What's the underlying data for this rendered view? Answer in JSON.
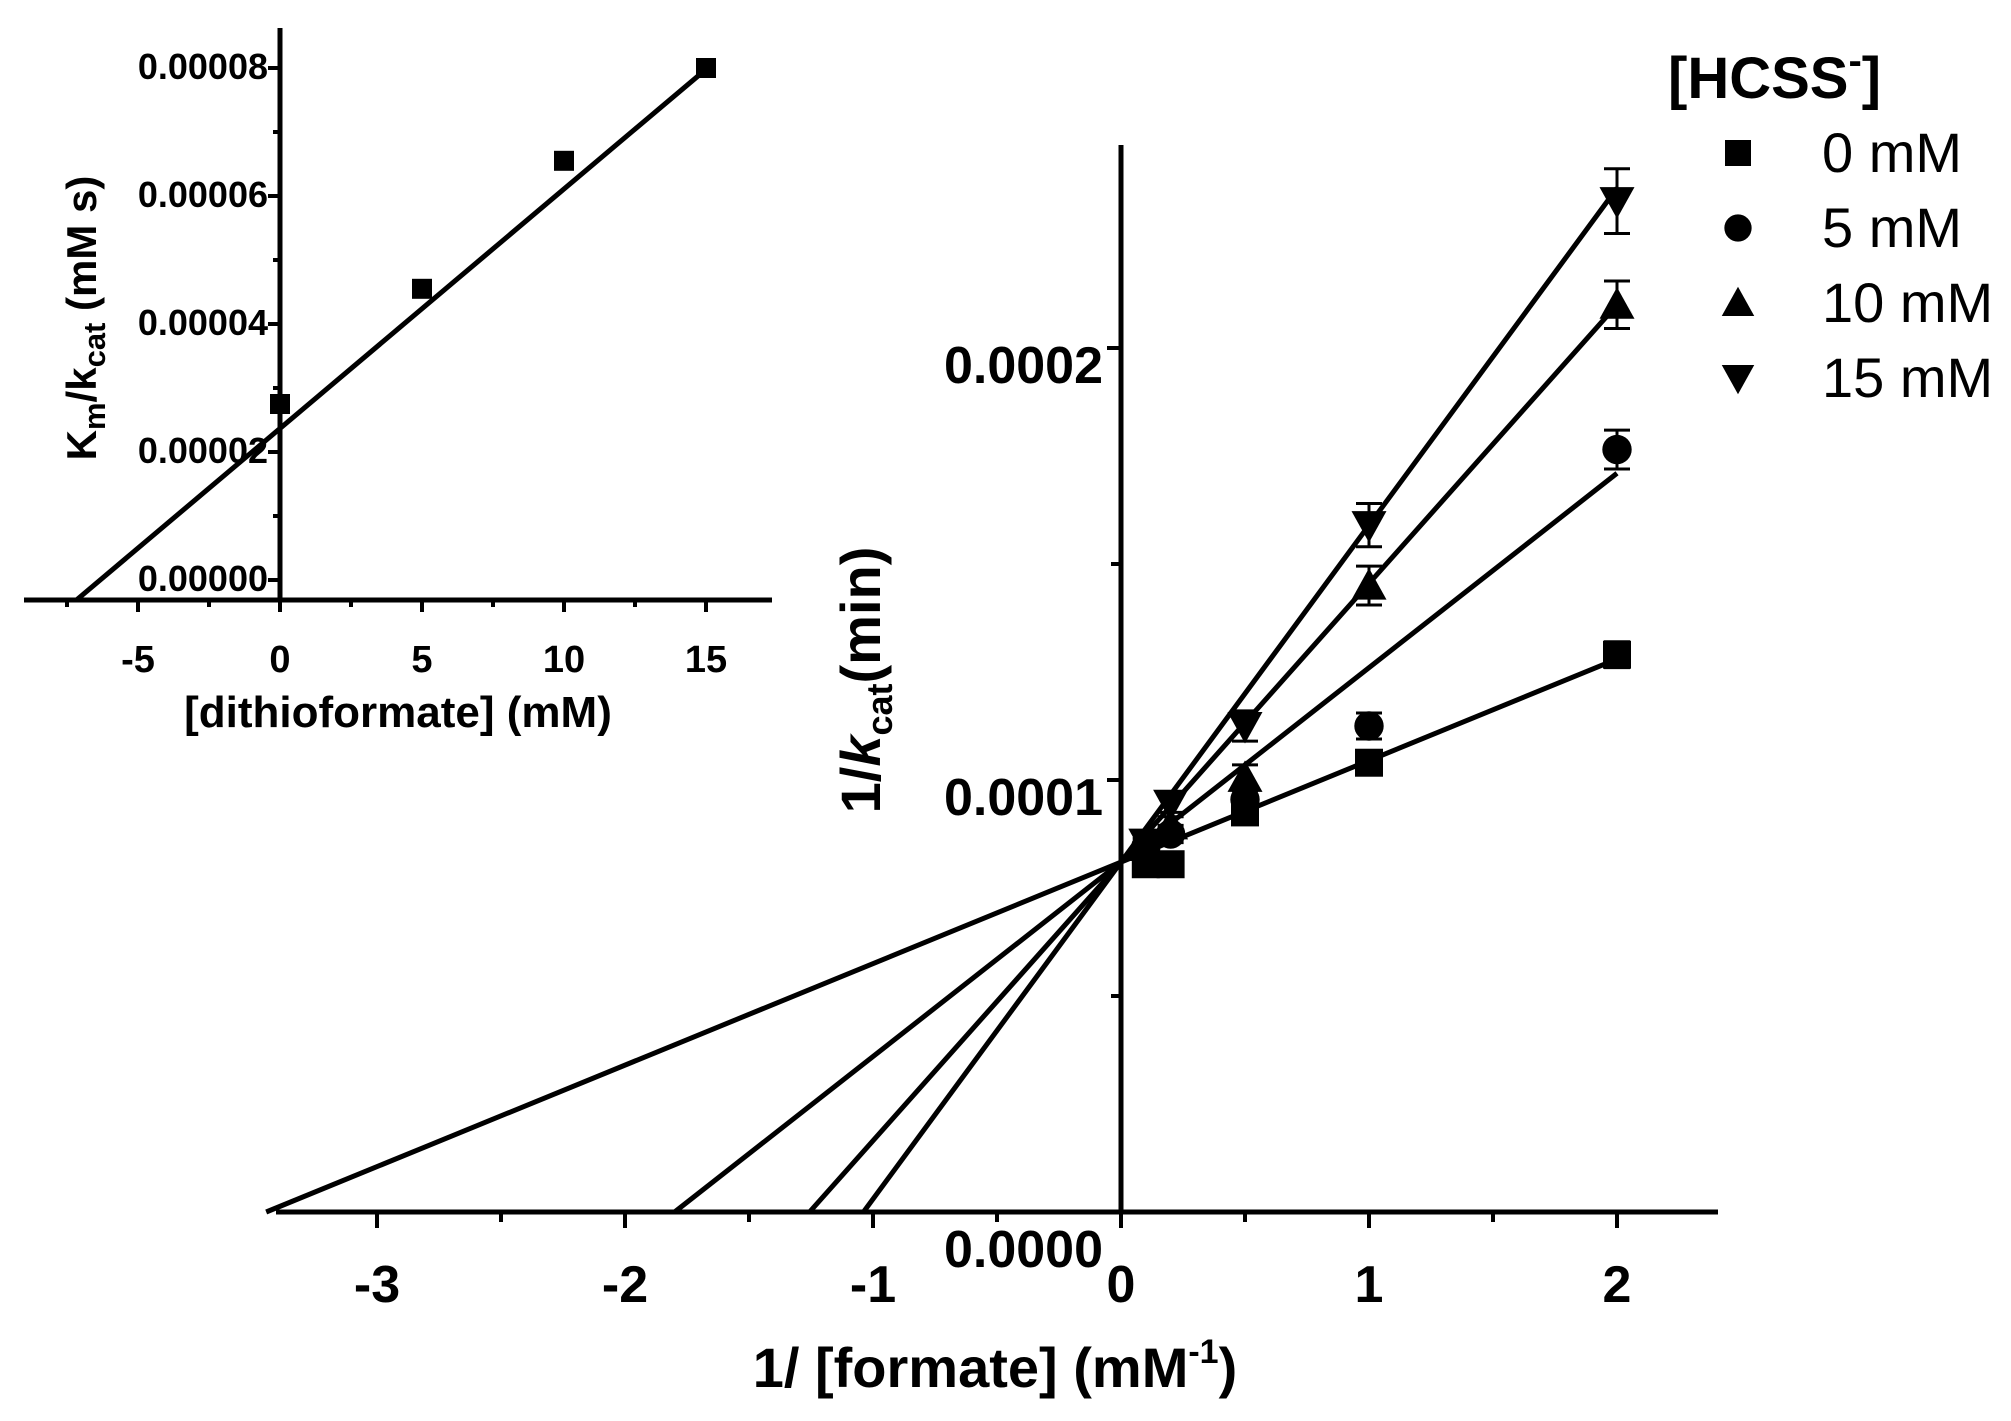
{
  "chart_data": [
    {
      "id": "main",
      "type": "scatter",
      "title": "",
      "xlabel": "1/ [formate] (mM",
      "xlabel_sup": "-1",
      "xlabel_end": ")",
      "ylabel": "1/",
      "ylabel_k": "k",
      "ylabel_sub": "cat",
      "ylabel_end": "(min)",
      "xlim": [
        -3.4,
        2.4
      ],
      "ylim": [
        0,
        0.00025
      ],
      "x_ticks": [
        -3,
        -2,
        -1,
        0,
        1,
        2
      ],
      "x_tick_labels": [
        "-3",
        "-2",
        "-1",
        "0",
        "1",
        "2"
      ],
      "y_ticks": [
        0,
        0.0001,
        0.0002
      ],
      "y_tick_labels": [
        "0.0000",
        "0.0001",
        "0.0002"
      ],
      "y_minor_ticks": [
        5e-05,
        0.00015
      ],
      "legend": {
        "title": "[HCSS",
        "title_sup": "-",
        "title_end": "]",
        "position": "top-right"
      },
      "series": [
        {
          "name": "0 mM",
          "marker": "square",
          "x": [
            0.1,
            0.2,
            0.5,
            1,
            2
          ],
          "y": [
            8.05e-05,
            8.05e-05,
            9.25e-05,
            0.000104,
            0.000129
          ],
          "err": [
            1.8e-06,
            1.8e-06,
            2e-06,
            2.5e-06,
            3e-06
          ],
          "fit": {
            "slope": 2.35e-05,
            "intercept": 8.1e-05
          }
        },
        {
          "name": "5 mM",
          "marker": "circle",
          "x": [
            0.1,
            0.2,
            0.5,
            1,
            2
          ],
          "y": [
            8.45e-05,
            8.75e-05,
            9.55e-05,
            0.0001125,
            0.0001765
          ],
          "err": [
            2e-06,
            2e-06,
            2.5e-06,
            3e-06,
            4.5e-06
          ],
          "fit": {
            "slope": 4.5e-05,
            "intercept": 8.1e-05
          }
        },
        {
          "name": "10 mM",
          "marker": "triangle-up",
          "x": [
            0.1,
            0.2,
            0.5,
            1,
            2
          ],
          "y": [
            8.45e-05,
            8.95e-05,
            0.0001005,
            0.000145,
            0.00021
          ],
          "err": [
            2e-06,
            2e-06,
            3e-06,
            4.5e-06,
            5.5e-06
          ],
          "fit": {
            "slope": 6.45e-05,
            "intercept": 8.1e-05
          }
        },
        {
          "name": "15 mM",
          "marker": "triangle-down",
          "x": [
            0.1,
            0.2,
            0.5,
            1,
            2
          ],
          "y": [
            8.55e-05,
            9.45e-05,
            0.0001125,
            0.000159,
            0.000234
          ],
          "err": [
            2e-06,
            2e-06,
            3.5e-06,
            5e-06,
            7.5e-06
          ],
          "fit": {
            "slope": 7.8e-05,
            "intercept": 8.1e-05
          }
        }
      ]
    },
    {
      "id": "inset",
      "type": "scatter",
      "title": "",
      "xlabel": "[dithioformate] (mM)",
      "ylabel": "K",
      "ylabel_m": "m",
      "ylabel_mid": "/k",
      "ylabel_sub": "cat",
      "ylabel_end": " (mM s)",
      "xlim": [
        -9,
        17.5
      ],
      "ylim": [
        -3.5e-06,
        8.8e-05
      ],
      "x_ticks": [
        -5,
        0,
        5,
        10,
        15
      ],
      "x_tick_labels": [
        "-5",
        "0",
        "5",
        "10",
        "15"
      ],
      "y_ticks": [
        0,
        2e-05,
        4e-05,
        6e-05,
        8e-05
      ],
      "y_tick_labels": [
        "0.00000",
        "0.00002",
        "0.00004",
        "0.00006",
        "0.00008"
      ],
      "series": [
        {
          "name": "Km/kcat",
          "marker": "square",
          "x": [
            0,
            5,
            10,
            15
          ],
          "y": [
            2.75e-05,
            4.55e-05,
            6.55e-05,
            8e-05
          ],
          "fit": {
            "slope": 3.6e-06,
            "intercept": 2.58e-05
          }
        }
      ]
    }
  ]
}
